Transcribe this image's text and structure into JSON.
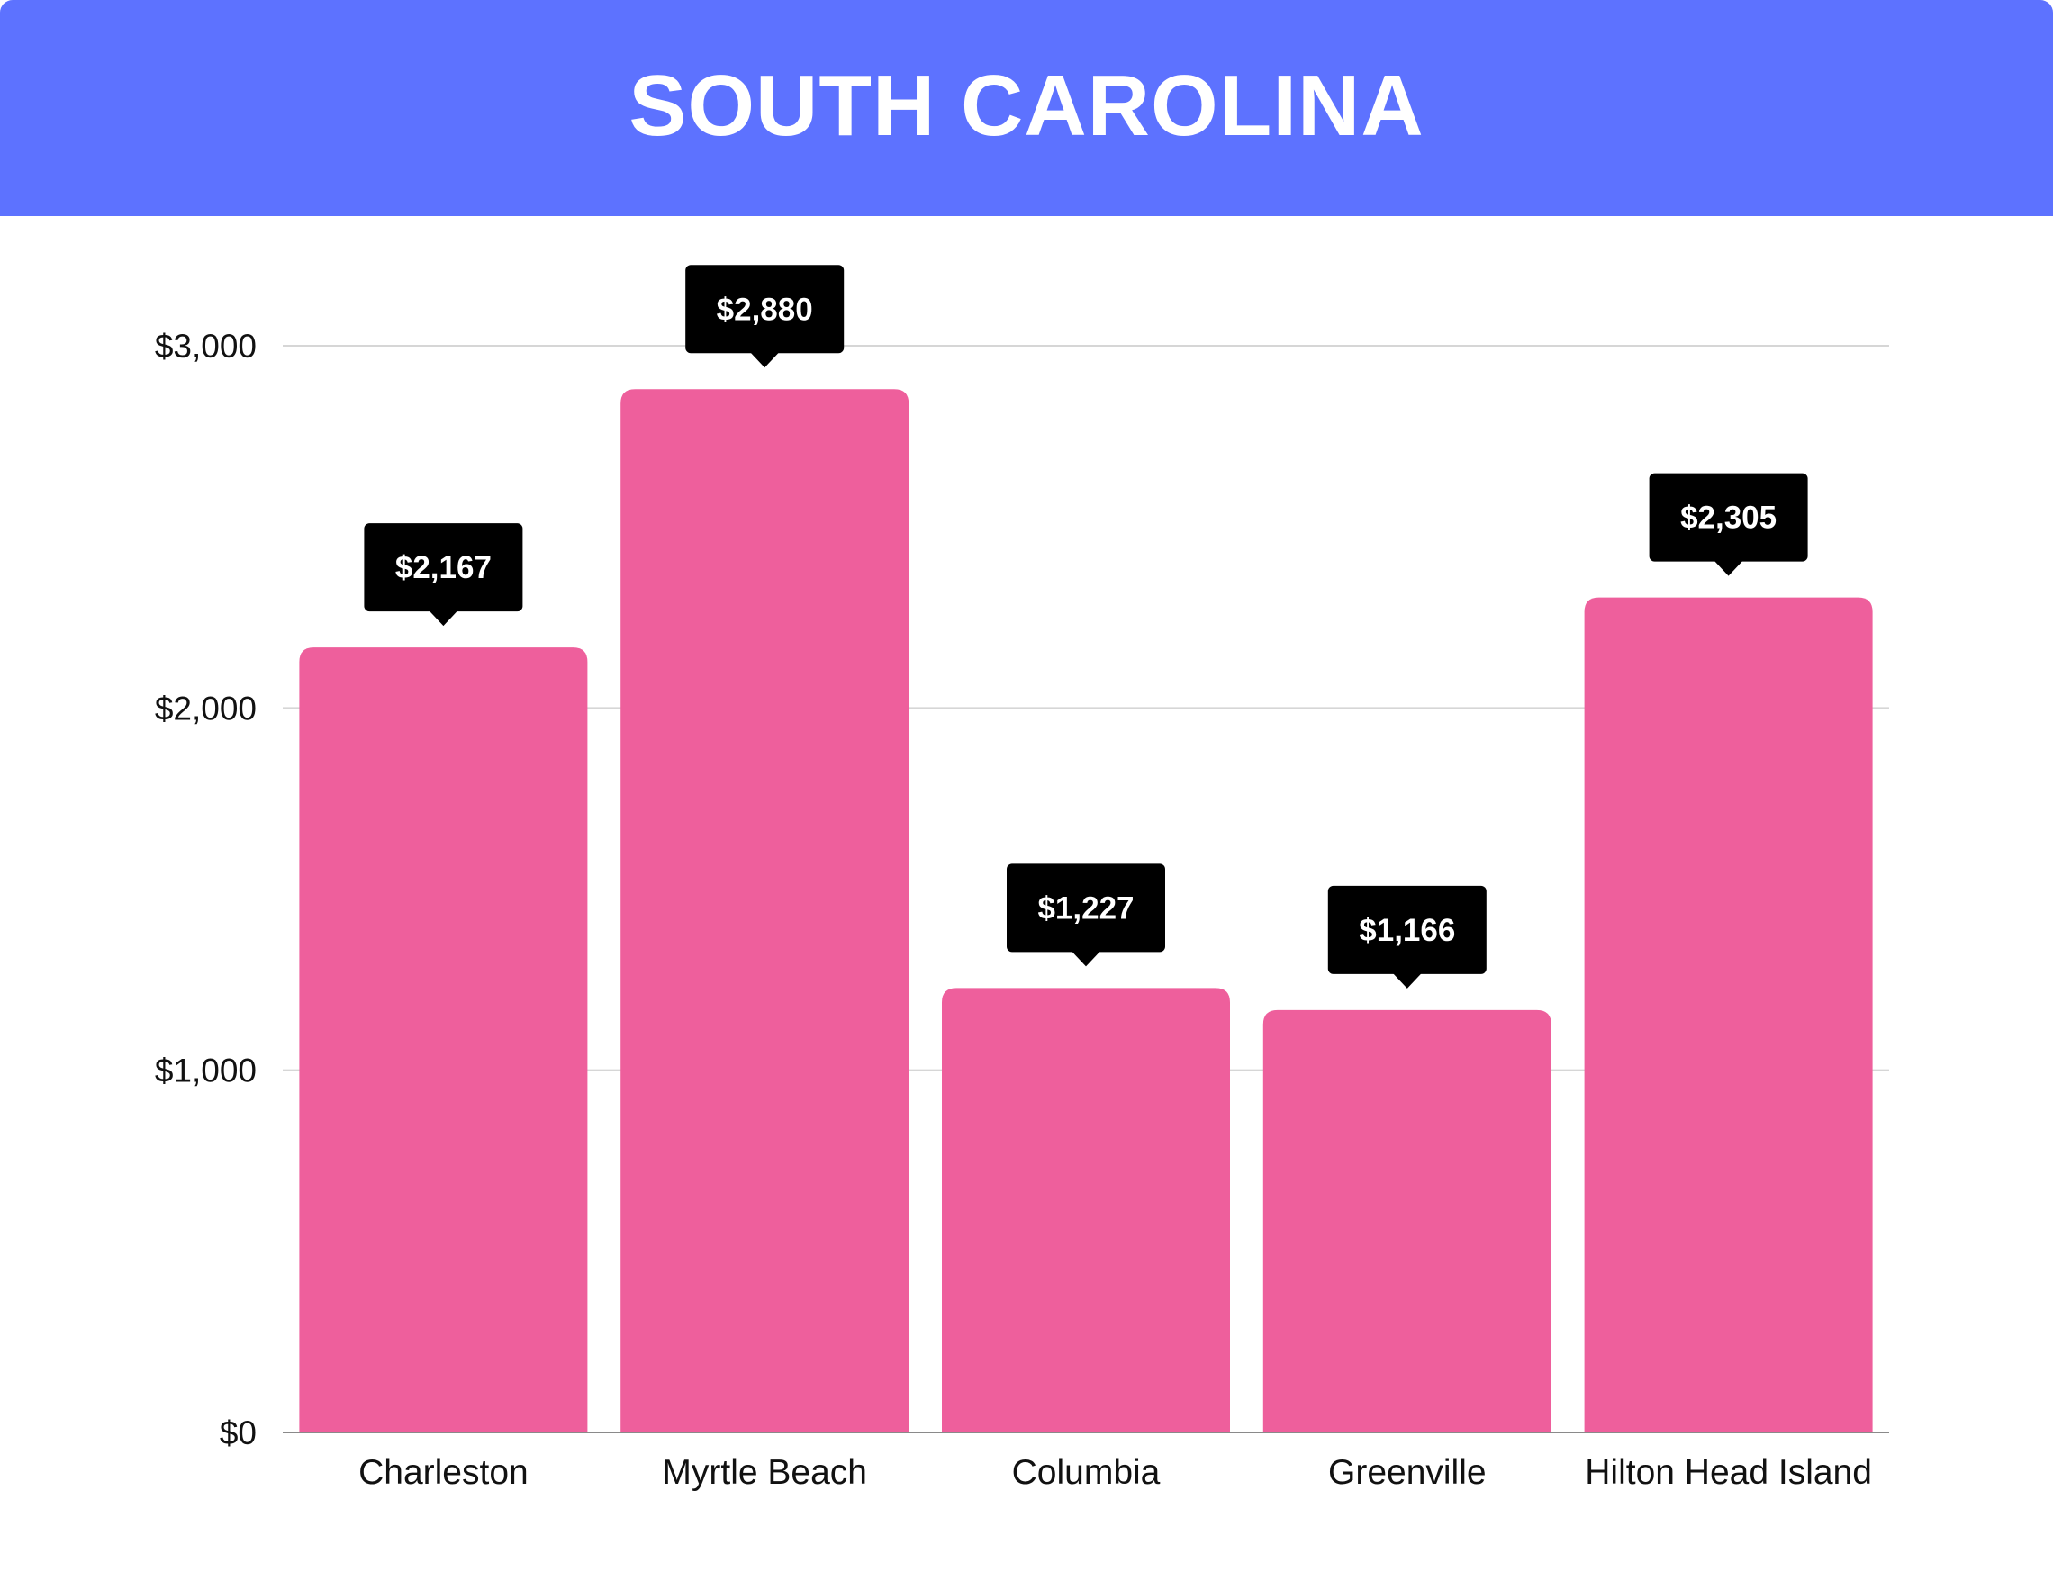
{
  "header": {
    "title": "SOUTH CAROLINA",
    "background_color": "#5d72ff"
  },
  "chart_data": {
    "type": "bar",
    "title": "SOUTH CAROLINA",
    "xlabel": "",
    "ylabel": "",
    "categories": [
      "Charleston",
      "Myrtle Beach",
      "Columbia",
      "Greenville",
      "Hilton Head Island"
    ],
    "values": [
      2167,
      2880,
      1227,
      1166,
      2305
    ],
    "data_labels": [
      "$2,167",
      "$2,880",
      "$1,227",
      "$1,166",
      "$2,305"
    ],
    "ylim": [
      0,
      3000
    ],
    "yticks": [
      0,
      1000,
      2000,
      3000
    ],
    "ytick_labels": [
      "$0",
      "$1,000",
      "$2,000",
      "$3,000"
    ],
    "grid": true,
    "legend": "none",
    "bar_color": "#ee5f9c",
    "label_box_color": "#000000",
    "gridline_color": "#d6d6d6"
  }
}
